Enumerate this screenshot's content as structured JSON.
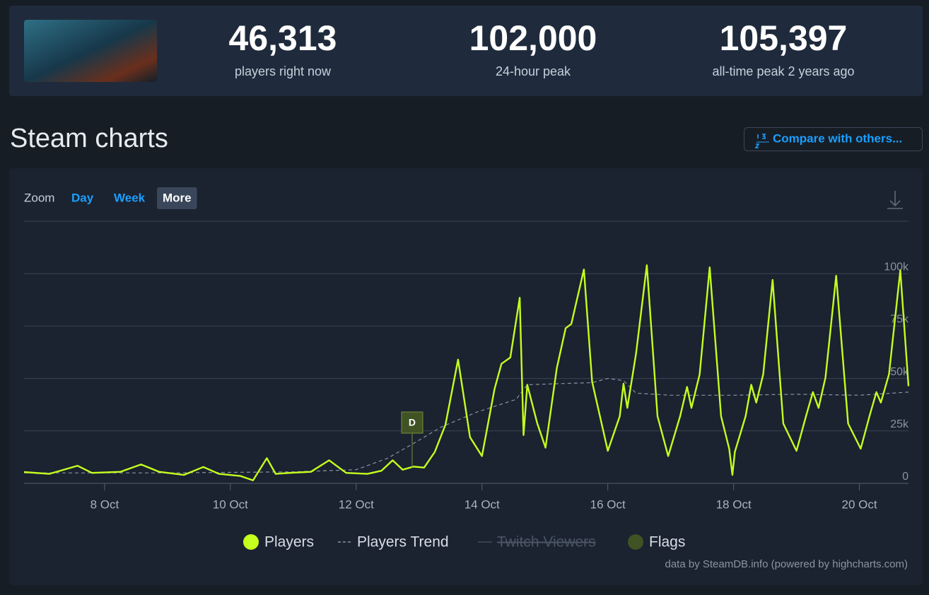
{
  "stats": [
    {
      "value": "46,313",
      "label": "players right now"
    },
    {
      "value": "102,000",
      "label": "24-hour peak"
    },
    {
      "value": "105,397",
      "label": "all-time peak 2 years ago"
    }
  ],
  "section_title": "Steam charts",
  "compare_button": "Compare with others...",
  "zoom": {
    "label": "Zoom",
    "options": [
      "Day",
      "Week",
      "More"
    ],
    "active": 2
  },
  "chart_data": {
    "type": "line",
    "xlim": [
      6.72,
      20.78
    ],
    "xticks": [
      {
        "value": 8,
        "label": "8 Oct"
      },
      {
        "value": 10,
        "label": "10 Oct"
      },
      {
        "value": 12,
        "label": "12 Oct"
      },
      {
        "value": 14,
        "label": "14 Oct"
      },
      {
        "value": 16,
        "label": "16 Oct"
      },
      {
        "value": 18,
        "label": "18 Oct"
      },
      {
        "value": 20,
        "label": "20 Oct"
      }
    ],
    "ylim": [
      0,
      125000
    ],
    "yticks": [
      0,
      {
        "value": 25000,
        "label": "25k"
      },
      {
        "value": 50000,
        "label": "50k"
      },
      {
        "value": 75000,
        "label": "75k"
      },
      {
        "value": 100000,
        "label": "100k"
      }
    ],
    "grid": true,
    "series": [
      {
        "name": "Players",
        "color": "#c4ff1e",
        "style": "solid",
        "x": [
          6.72,
          7.12,
          7.57,
          7.8,
          8.25,
          8.58,
          8.87,
          9.26,
          9.57,
          9.82,
          10.16,
          10.36,
          10.58,
          10.72,
          10.94,
          11.28,
          11.57,
          11.84,
          12.18,
          12.4,
          12.58,
          12.74,
          12.91,
          13.08,
          13.25,
          13.42,
          13.62,
          13.81,
          14.0,
          14.2,
          14.31,
          14.45,
          14.6,
          14.66,
          14.72,
          14.88,
          15.01,
          15.19,
          15.33,
          15.42,
          15.62,
          15.75,
          16.0,
          16.19,
          16.25,
          16.31,
          16.45,
          16.62,
          16.79,
          16.96,
          17.15,
          17.26,
          17.33,
          17.46,
          17.62,
          17.8,
          17.93,
          17.98,
          18.02,
          18.19,
          18.28,
          18.36,
          18.47,
          18.62,
          18.79,
          19.0,
          19.15,
          19.26,
          19.35,
          19.46,
          19.63,
          19.82,
          20.02,
          20.16,
          20.27,
          20.34,
          20.47,
          20.65,
          20.78
        ],
        "values": [
          5400,
          4500,
          8400,
          5000,
          5500,
          9000,
          5500,
          4000,
          7800,
          4500,
          3500,
          1400,
          12000,
          4500,
          5000,
          5500,
          11000,
          5000,
          4500,
          6000,
          11000,
          6500,
          8000,
          7500,
          15000,
          28000,
          59000,
          22000,
          13000,
          45000,
          57000,
          60000,
          88500,
          23000,
          47000,
          28500,
          17000,
          55000,
          74000,
          76000,
          102000,
          48500,
          15500,
          32000,
          47500,
          36000,
          62000,
          104000,
          32000,
          13000,
          32000,
          46000,
          36000,
          52000,
          103000,
          32000,
          16500,
          4000,
          15000,
          32000,
          47000,
          38500,
          52000,
          97000,
          28500,
          15500,
          32000,
          43500,
          36000,
          50500,
          99000,
          28500,
          16500,
          32000,
          43500,
          38500,
          52000,
          101500,
          46313
        ]
      },
      {
        "name": "Players Trend",
        "color": "#8a94a0",
        "style": "dashed",
        "x": [
          6.72,
          9.0,
          11.0,
          12.0,
          12.5,
          12.91,
          13.36,
          13.92,
          14.54,
          14.72,
          15.19,
          15.75,
          16.0,
          16.25,
          16.45,
          17.0,
          18.0,
          19.0,
          20.0,
          20.78
        ],
        "values": [
          5000,
          5000,
          5500,
          6500,
          12000,
          19000,
          27000,
          34000,
          40000,
          47000,
          47500,
          48000,
          50000,
          49000,
          43000,
          42000,
          42000,
          42500,
          42000,
          43500
        ]
      },
      {
        "name": "Twitch Viewers",
        "color": "#3e4a5a",
        "style": "hidden",
        "x": [],
        "values": []
      },
      {
        "name": "Flags",
        "color": "#3f5324",
        "style": "flag",
        "x": [
          12.89
        ],
        "labels": [
          "D"
        ]
      }
    ]
  },
  "credits": "data by SteamDB.info (powered by highcharts.com)"
}
